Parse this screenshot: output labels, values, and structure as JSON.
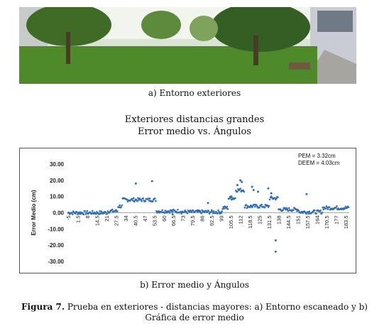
{
  "photo_caption": "a) Entorno exteriores",
  "chart_heading": {
    "line1": "Exteriores distancias grandes",
    "line2": "Error medio vs. Ángulos"
  },
  "chart_caption": "b) Error medio y Ángulos",
  "figure_caption": {
    "label": "Figura 7.",
    "text_line1": " Prueba en exteriores - distancias mayores: a) Entorno escaneado y b)",
    "text_line2": "Gráfica de error medio"
  },
  "chart_data": {
    "type": "scatter",
    "ylabel": "Error Medio (cm)",
    "xlabel": "",
    "ylim": [
      -30,
      30
    ],
    "xlim": [
      -5,
      186
    ],
    "y_ticks": [
      "30.00",
      "20.00",
      "10.00",
      "0.00",
      "-10.00",
      "-20.00",
      "-30.00"
    ],
    "x_ticks": [
      "-5",
      "1.5",
      "8",
      "14.5",
      "21",
      "27.5",
      "34",
      "40.5",
      "47",
      "53.5",
      "60",
      "66.5",
      "73",
      "79.5",
      "86",
      "92.5",
      "99",
      "105.5",
      "112",
      "118.5",
      "125",
      "131.5",
      "138",
      "144.5",
      "151",
      "157.5",
      "164",
      "170.5",
      "177",
      "183.5"
    ],
    "annotations": [
      "PEM = 3.32cm",
      "DEEM = 4.03cm"
    ],
    "point_color": "#2f6db5",
    "segments": [
      {
        "from": -5,
        "to": 22,
        "value": 0.0
      },
      {
        "from": 22,
        "to": 29,
        "value": 1.0
      },
      {
        "from": 29,
        "to": 32,
        "value": 4.0
      },
      {
        "from": 32,
        "to": 55,
        "value": 8.0
      },
      {
        "from": 55,
        "to": 72,
        "value": 1.0
      },
      {
        "from": 72,
        "to": 100,
        "value": 0.5
      },
      {
        "from": 100,
        "to": 104,
        "value": 3.0
      },
      {
        "from": 104,
        "to": 109,
        "value": 9.0
      },
      {
        "from": 109,
        "to": 115,
        "value": 14.0
      },
      {
        "from": 115,
        "to": 132,
        "value": 4.0
      },
      {
        "from": 132,
        "to": 138,
        "value": 9.0
      },
      {
        "from": 138,
        "to": 152,
        "value": 2.0
      },
      {
        "from": 152,
        "to": 168,
        "value": 0.5
      },
      {
        "from": 168,
        "to": 186,
        "value": 3.0
      }
    ],
    "outliers": [
      {
        "x": 41,
        "y": 18
      },
      {
        "x": 52,
        "y": 19.5
      },
      {
        "x": 112,
        "y": 20
      },
      {
        "x": 113,
        "y": 19
      },
      {
        "x": 110,
        "y": 17
      },
      {
        "x": 120,
        "y": 16
      },
      {
        "x": 121,
        "y": 14
      },
      {
        "x": 124,
        "y": 13
      },
      {
        "x": 131,
        "y": 15
      },
      {
        "x": 133,
        "y": 12
      },
      {
        "x": 136,
        "y": -17
      },
      {
        "x": 136,
        "y": -24
      },
      {
        "x": 157,
        "y": 11.5
      },
      {
        "x": 90,
        "y": 6
      },
      {
        "x": 106,
        "y": 10
      },
      {
        "x": 66,
        "y": -1
      }
    ]
  }
}
